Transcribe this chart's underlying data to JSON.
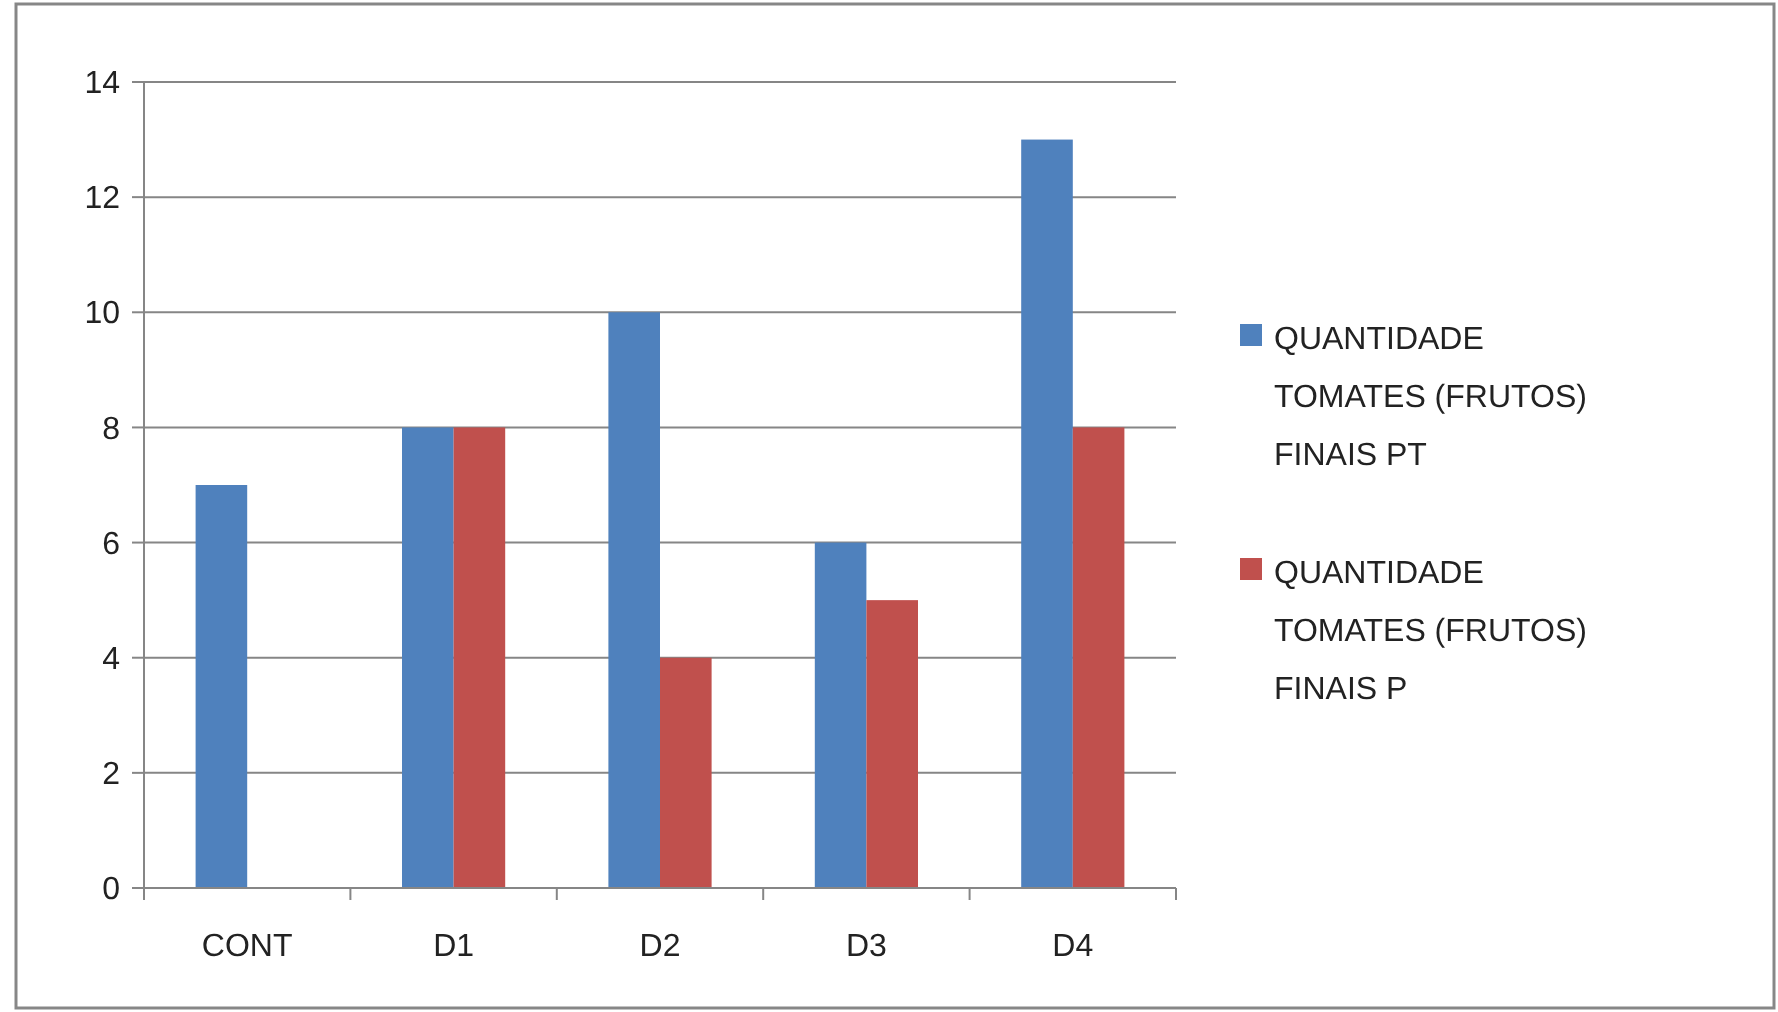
{
  "chart_data": {
    "type": "bar",
    "categories": [
      "CONT",
      "D1",
      "D2",
      "D3",
      "D4"
    ],
    "series": [
      {
        "name": "QUANTIDADE TOMATES (FRUTOS) FINAIS PT",
        "color": "#4f81bd",
        "values": [
          7,
          8,
          10,
          6,
          13
        ]
      },
      {
        "name": "QUANTIDADE TOMATES (FRUTOS) FINAIS P",
        "color": "#c0504d",
        "values": [
          0,
          8,
          4,
          5,
          8
        ]
      }
    ],
    "ylim": [
      0,
      14
    ],
    "yticks": [
      0,
      2,
      4,
      6,
      8,
      10,
      12,
      14
    ],
    "grid": "y",
    "legend": "right"
  }
}
